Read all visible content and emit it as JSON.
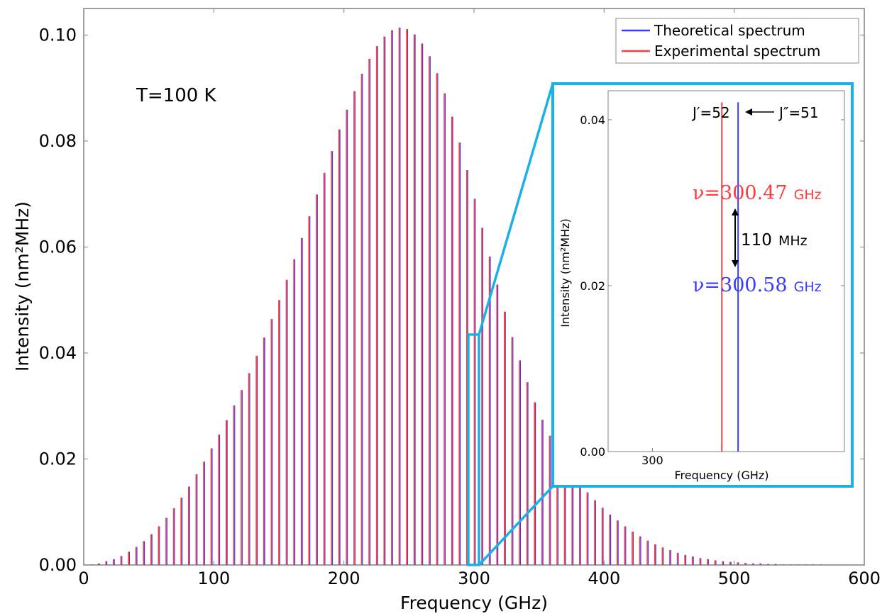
{
  "chart_data": [
    {
      "type": "bar",
      "title": "",
      "xlabel": "Frequency (GHz)",
      "ylabel": "Intensity (nm²MHz)",
      "xlim": [
        0,
        600
      ],
      "ylim": [
        0,
        0.105
      ],
      "x_ticks": [
        0,
        100,
        200,
        300,
        400,
        500,
        600
      ],
      "x_tick_labels": [
        "0",
        "100",
        "200",
        "300",
        "400",
        "500",
        "600"
      ],
      "y_ticks": [
        0.0,
        0.02,
        0.04,
        0.06,
        0.08,
        0.1
      ],
      "y_tick_labels": [
        "0.00",
        "0.02",
        "0.04",
        "0.06",
        "0.08",
        "0.10"
      ],
      "grid": false,
      "legend_position": "top-right",
      "annotation": "T=100 K",
      "series": [
        {
          "name": "Theoretical spectrum",
          "color": "#3b3bff",
          "x": [
            5.78,
            11.56,
            17.34,
            23.12,
            28.9,
            34.68,
            40.46,
            46.24,
            52.02,
            57.8,
            63.58,
            69.36,
            75.14,
            80.92,
            86.7,
            92.48,
            98.26,
            104.04,
            109.82,
            115.6,
            121.38,
            127.16,
            132.94,
            138.72,
            144.5,
            150.28,
            156.06,
            161.84,
            167.62,
            173.4,
            179.18,
            184.96,
            190.74,
            196.52,
            202.3,
            208.08,
            213.86,
            219.64,
            225.42,
            231.2,
            236.98,
            242.76,
            248.54,
            254.32,
            260.1,
            265.88,
            271.66,
            277.44,
            283.22,
            289.0,
            294.78,
            300.56,
            306.34,
            312.12,
            317.9,
            323.68,
            329.46,
            335.24,
            341.02,
            346.8,
            352.58,
            358.36,
            364.14,
            369.92,
            375.7,
            381.48,
            387.26,
            393.04,
            398.82,
            404.6,
            410.38,
            416.16,
            421.94,
            427.72,
            433.5,
            439.28,
            445.06,
            450.84,
            456.62,
            462.4,
            468.18,
            473.96,
            479.74,
            485.52,
            491.3,
            497.08,
            502.86,
            508.64,
            514.42,
            520.2,
            525.98,
            531.76,
            537.54,
            543.32,
            549.1,
            554.88,
            560.66,
            566.44,
            572.22,
            578.0,
            583.78,
            589.56,
            595.34
          ],
          "values": [
            0.0001,
            0.0003,
            0.0007,
            0.0011,
            0.0017,
            0.0025,
            0.0034,
            0.0045,
            0.0058,
            0.0073,
            0.0089,
            0.0107,
            0.0127,
            0.0148,
            0.0171,
            0.0195,
            0.022,
            0.0246,
            0.0273,
            0.0301,
            0.033,
            0.0362,
            0.0395,
            0.0429,
            0.0464,
            0.05,
            0.0538,
            0.0577,
            0.0617,
            0.0658,
            0.0699,
            0.074,
            0.0781,
            0.0822,
            0.0859,
            0.0894,
            0.0927,
            0.0955,
            0.0979,
            0.0997,
            0.1009,
            0.1014,
            0.1011,
            0.1001,
            0.0984,
            0.096,
            0.0928,
            0.089,
            0.0846,
            0.0797,
            0.0745,
            0.0691,
            0.0636,
            0.0582,
            0.0529,
            0.0478,
            0.043,
            0.0386,
            0.0345,
            0.0307,
            0.0274,
            0.0244,
            0.0217,
            0.0194,
            0.0173,
            0.0154,
            0.0137,
            0.0122,
            0.0108,
            0.0095,
            0.0084,
            0.0073,
            0.0063,
            0.0054,
            0.0046,
            0.0039,
            0.0033,
            0.0028,
            0.0023,
            0.0019,
            0.0016,
            0.0013,
            0.0011,
            0.0009,
            0.0007,
            0.0006,
            0.0005,
            0.0004,
            0.0003,
            0.0003,
            0.0002,
            0.0002,
            0.0001,
            0.0001,
            0.0001,
            0.0001,
            0.0001,
            0.0001,
            0.0,
            0.0,
            0.0,
            0.0,
            0.0
          ]
        },
        {
          "name": "Experimental spectrum",
          "color": "#ff3b3b",
          "note_same_positions": true
        }
      ]
    },
    {
      "type": "bar",
      "title": "",
      "xlabel": "Frequency (GHz)",
      "ylabel": "Intensity (nm²MHz)",
      "xlim": [
        299.7,
        301.3
      ],
      "ylim": [
        0,
        0.0435
      ],
      "x_ticks": [
        300
      ],
      "x_tick_labels": [
        "300"
      ],
      "y_ticks": [
        0.0,
        0.02,
        0.04
      ],
      "y_tick_labels": [
        "0.00",
        "0.02",
        "0.04"
      ],
      "series": [
        {
          "name": "Experimental spectrum",
          "color": "#ff3b3b",
          "x": [
            300.47
          ],
          "values": [
            0.0421
          ]
        },
        {
          "name": "Theoretical spectrum",
          "color": "#3b3bff",
          "x": [
            300.58
          ],
          "values": [
            0.0421
          ]
        }
      ],
      "annotations": {
        "j_prime": "J′=52",
        "j_double_prime": "J″=51",
        "nu_exp_value": "ν=300.47",
        "nu_exp_unit": "GHz",
        "nu_theo_value": "ν=300.58",
        "nu_theo_unit": "GHz",
        "diff_value": "110",
        "diff_unit": "MHz"
      }
    }
  ],
  "colors": {
    "experimental": "#ff3b3b",
    "theoretical": "#3b3bff",
    "zoom_box": "#1ab0e8"
  }
}
